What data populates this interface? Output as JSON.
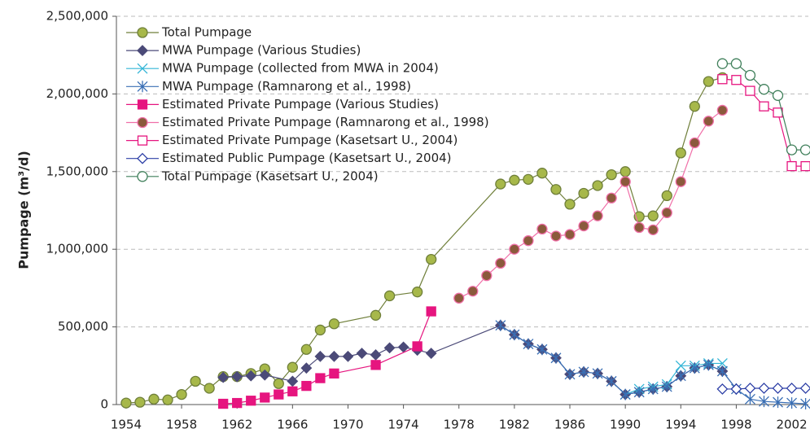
{
  "chart_data": {
    "type": "line",
    "y_label": "Pumpage (m³/d)",
    "xlim": [
      1953.3,
      2003.2
    ],
    "xticks": [
      1954,
      1958,
      1962,
      1966,
      1970,
      1974,
      1978,
      1982,
      1986,
      1990,
      1994,
      1998,
      2002
    ],
    "ylim": [
      0,
      2500000
    ],
    "yticks": [
      {
        "value": 0,
        "label": "0"
      },
      {
        "value": 500000,
        "label": "500,000"
      },
      {
        "value": 1000000,
        "label": "1,000,000"
      },
      {
        "value": 1500000,
        "label": "1,500,000"
      },
      {
        "value": 2000000,
        "label": "2,000,000"
      },
      {
        "value": 2500000,
        "label": "2,500,000"
      }
    ],
    "grid": true,
    "legend": "upper left",
    "series": [
      {
        "name": "Total Pumpage",
        "color": "#6f7f3a",
        "marker": "circle",
        "marker_fill": "#a7b84a",
        "x": [
          1954,
          1955,
          1956,
          1957,
          1958,
          1959,
          1960,
          1961,
          1962,
          1963,
          1964,
          1965,
          1966,
          1967,
          1968,
          1969,
          1972,
          1973,
          1975,
          1976,
          1981,
          1982,
          1983,
          1984,
          1985,
          1986,
          1987,
          1988,
          1989,
          1990,
          1991,
          1992,
          1993,
          1994,
          1995,
          1996,
          1997
        ],
        "values": [
          10000,
          15000,
          35000,
          30000,
          65000,
          150000,
          105000,
          180000,
          180000,
          200000,
          230000,
          135000,
          240000,
          355000,
          480000,
          520000,
          575000,
          700000,
          725000,
          935000,
          1420000,
          1445000,
          1450000,
          1490000,
          1385000,
          1290000,
          1360000,
          1410000,
          1480000,
          1500000,
          1210000,
          1215000,
          1345000,
          1620000,
          1920000,
          2080000,
          2105000
        ]
      },
      {
        "name": "MWA Pumpage (Various Studies)",
        "color": "#4b4a78",
        "marker": "diamond",
        "marker_fill": "#4b4a78",
        "x": [
          1961,
          1962,
          1963,
          1964,
          1966,
          1967,
          1968,
          1969,
          1970,
          1971,
          1972,
          1973,
          1974,
          1975,
          1976,
          1981,
          1982,
          1983,
          1984,
          1985,
          1986,
          1987,
          1988,
          1989,
          1990,
          1991,
          1992,
          1993,
          1994,
          1995,
          1996,
          1997,
          1998
        ],
        "values": [
          175000,
          180000,
          185000,
          190000,
          150000,
          235000,
          310000,
          310000,
          310000,
          330000,
          320000,
          365000,
          370000,
          350000,
          330000,
          510000,
          450000,
          390000,
          355000,
          300000,
          195000,
          210000,
          200000,
          150000,
          65000,
          80000,
          100000,
          115000,
          185000,
          235000,
          255000,
          215000,
          100000
        ]
      },
      {
        "name": "MWA Pumpage (collected from MWA in 2004)",
        "color": "#33b5d6",
        "marker": "x",
        "marker_fill": "none",
        "x": [
          1990,
          1991,
          1992,
          1993,
          1994,
          1995,
          1996,
          1997
        ],
        "values": [
          65000,
          100000,
          115000,
          130000,
          250000,
          250000,
          265000,
          265000
        ]
      },
      {
        "name": "MWA Pumpage (Ramnarong et al., 1998)",
        "color": "#3a6fb5",
        "marker": "star",
        "marker_fill": "none",
        "x": [
          1981,
          1982,
          1983,
          1984,
          1985,
          1986,
          1987,
          1988,
          1989,
          1990,
          1991,
          1992,
          1993,
          1994,
          1995,
          1996,
          1997,
          1998,
          1999,
          2000,
          2001,
          2002,
          2003
        ],
        "values": [
          510000,
          450000,
          390000,
          355000,
          300000,
          195000,
          210000,
          200000,
          150000,
          65000,
          80000,
          100000,
          115000,
          185000,
          235000,
          255000,
          215000,
          100000,
          35000,
          20000,
          15000,
          10000,
          5000
        ]
      },
      {
        "name": "Estimated Private Pumpage (Various Studies)",
        "color": "#e6157f",
        "marker": "square",
        "marker_fill": "#e6157f",
        "x": [
          1961,
          1962,
          1963,
          1964,
          1965,
          1966,
          1967,
          1968,
          1969,
          1972,
          1975,
          1976
        ],
        "values": [
          5000,
          10000,
          25000,
          45000,
          65000,
          85000,
          120000,
          170000,
          200000,
          255000,
          375000,
          600000
        ]
      },
      {
        "name": "Estimated Private Pumpage (Ramnarong et al., 1998)",
        "color": "#f06fa8",
        "marker": "circle",
        "marker_fill": "#8b5a3c",
        "x": [
          1978,
          1979,
          1980,
          1981,
          1982,
          1983,
          1984,
          1985,
          1986,
          1987,
          1988,
          1989,
          1990,
          1991,
          1992,
          1993,
          1994,
          1995,
          1996,
          1997
        ],
        "values": [
          685000,
          730000,
          830000,
          910000,
          1000000,
          1055000,
          1130000,
          1085000,
          1095000,
          1150000,
          1215000,
          1330000,
          1435000,
          1140000,
          1125000,
          1235000,
          1435000,
          1685000,
          1825000,
          1895000
        ]
      },
      {
        "name": "Estimated Private Pumpage (Kasetsart U., 2004)",
        "color": "#e6157f",
        "marker": "square",
        "marker_fill": "#ffffff",
        "x": [
          1997,
          1998,
          1999,
          2000,
          2001,
          2002,
          2003
        ],
        "values": [
          2095000,
          2090000,
          2020000,
          1920000,
          1880000,
          1535000,
          1535000
        ]
      },
      {
        "name": "Estimated Public Pumpage (Kasetsart U., 2004)",
        "color": "#2d3fa6",
        "marker": "diamond",
        "marker_fill": "#ffffff",
        "x": [
          1997,
          1998,
          1999,
          2000,
          2001,
          2002,
          2003
        ],
        "values": [
          100000,
          100000,
          105000,
          105000,
          105000,
          105000,
          105000
        ]
      },
      {
        "name": "Total Pumpage (Kasetsart U., 2004)",
        "color": "#3f7f5a",
        "marker": "circle",
        "marker_fill": "#ffffff",
        "x": [
          1997,
          1998,
          1999,
          2000,
          2001,
          2002,
          2003
        ],
        "values": [
          2195000,
          2195000,
          2120000,
          2030000,
          1990000,
          1640000,
          1640000
        ]
      }
    ]
  }
}
